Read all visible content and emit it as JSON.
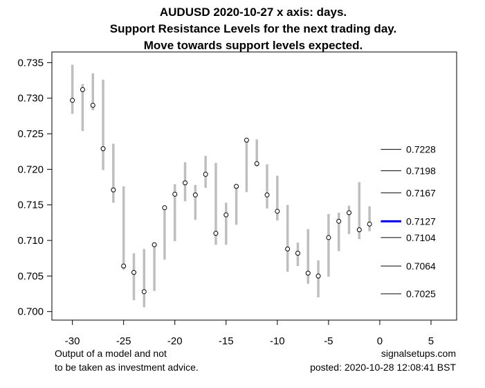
{
  "chart_data": {
    "type": "range-dot",
    "title_lines": [
      "AUDUSD 2020-10-27 x axis: days.",
      "Support Resistance Levels for the next trading day.",
      "Move towards support levels expected."
    ],
    "xlim": [
      -32,
      7.5
    ],
    "ylim": [
      0.6988,
      0.7365
    ],
    "x_ticks": [
      -30,
      -25,
      -20,
      -15,
      -10,
      -5,
      0,
      5
    ],
    "x_tick_labels": [
      "-30",
      "-25",
      "-20",
      "-15",
      "-10",
      "-5",
      "0",
      "5"
    ],
    "y_ticks": [
      0.7,
      0.705,
      0.71,
      0.715,
      0.72,
      0.725,
      0.73,
      0.735
    ],
    "y_tick_labels": [
      "0.700",
      "0.705",
      "0.710",
      "0.715",
      "0.720",
      "0.725",
      "0.730",
      "0.735"
    ],
    "series": [
      {
        "x": -30,
        "low": 0.7278,
        "high": 0.7347,
        "close": 0.7297
      },
      {
        "x": -29,
        "low": 0.7254,
        "high": 0.732,
        "close": 0.7312
      },
      {
        "x": -28,
        "low": 0.7283,
        "high": 0.7335,
        "close": 0.729
      },
      {
        "x": -27,
        "low": 0.7199,
        "high": 0.7326,
        "close": 0.7229
      },
      {
        "x": -26,
        "low": 0.7153,
        "high": 0.7236,
        "close": 0.7171
      },
      {
        "x": -25,
        "low": 0.7059,
        "high": 0.7176,
        "close": 0.7064
      },
      {
        "x": -24,
        "low": 0.7016,
        "high": 0.7082,
        "close": 0.7055
      },
      {
        "x": -23,
        "low": 0.7006,
        "high": 0.7088,
        "close": 0.7028
      },
      {
        "x": -22,
        "low": 0.7029,
        "high": 0.7097,
        "close": 0.7094
      },
      {
        "x": -21,
        "low": 0.7073,
        "high": 0.7149,
        "close": 0.7146
      },
      {
        "x": -20,
        "low": 0.7099,
        "high": 0.7179,
        "close": 0.7165
      },
      {
        "x": -19,
        "low": 0.7155,
        "high": 0.721,
        "close": 0.7181
      },
      {
        "x": -18,
        "low": 0.7129,
        "high": 0.7178,
        "close": 0.7164
      },
      {
        "x": -17,
        "low": 0.7174,
        "high": 0.7219,
        "close": 0.7193
      },
      {
        "x": -16,
        "low": 0.7094,
        "high": 0.7209,
        "close": 0.711
      },
      {
        "x": -15,
        "low": 0.7094,
        "high": 0.7153,
        "close": 0.7136
      },
      {
        "x": -14,
        "low": 0.7122,
        "high": 0.7179,
        "close": 0.7176
      },
      {
        "x": -13,
        "low": 0.7168,
        "high": 0.7241,
        "close": 0.7241
      },
      {
        "x": -12,
        "low": 0.7204,
        "high": 0.7242,
        "close": 0.7208
      },
      {
        "x": -11,
        "low": 0.7145,
        "high": 0.7207,
        "close": 0.7164
      },
      {
        "x": -10,
        "low": 0.7128,
        "high": 0.7191,
        "close": 0.7141
      },
      {
        "x": -9,
        "low": 0.7056,
        "high": 0.715,
        "close": 0.7088
      },
      {
        "x": -8,
        "low": 0.7064,
        "high": 0.7097,
        "close": 0.7082
      },
      {
        "x": -7,
        "low": 0.7039,
        "high": 0.7116,
        "close": 0.7054
      },
      {
        "x": -6,
        "low": 0.702,
        "high": 0.7072,
        "close": 0.705
      },
      {
        "x": -5,
        "low": 0.7049,
        "high": 0.7137,
        "close": 0.7104
      },
      {
        "x": -4,
        "low": 0.7085,
        "high": 0.7139,
        "close": 0.7127
      },
      {
        "x": -3,
        "low": 0.7109,
        "high": 0.7149,
        "close": 0.7139
      },
      {
        "x": -2,
        "low": 0.7102,
        "high": 0.7182,
        "close": 0.7115
      },
      {
        "x": -1,
        "low": 0.7113,
        "high": 0.7148,
        "close": 0.7123
      }
    ],
    "levels": [
      {
        "value": 0.7228,
        "label": "0.7228",
        "current": false
      },
      {
        "value": 0.7198,
        "label": "0.7198",
        "current": false
      },
      {
        "value": 0.7167,
        "label": "0.7167",
        "current": false
      },
      {
        "value": 0.7127,
        "label": "0.7127",
        "current": true
      },
      {
        "value": 0.7104,
        "label": "0.7104",
        "current": false
      },
      {
        "value": 0.7064,
        "label": "0.7064",
        "current": false
      },
      {
        "value": 0.7025,
        "label": "0.7025",
        "current": false
      }
    ],
    "level_x_range": [
      0.1,
      2.1
    ],
    "colors": {
      "bar": "#bebebe",
      "dot_stroke": "#000000",
      "dot_fill": "#ffffff",
      "level_line": "#000000",
      "current_level": "#0000ff",
      "axis": "#000000"
    }
  },
  "footer": {
    "disclaimer_line1": "Output of a model and not",
    "disclaimer_line2": "to be taken as investment advice.",
    "site": "signalsetups.com",
    "posted": "posted: 2020-10-28 12:08:41 BST"
  }
}
